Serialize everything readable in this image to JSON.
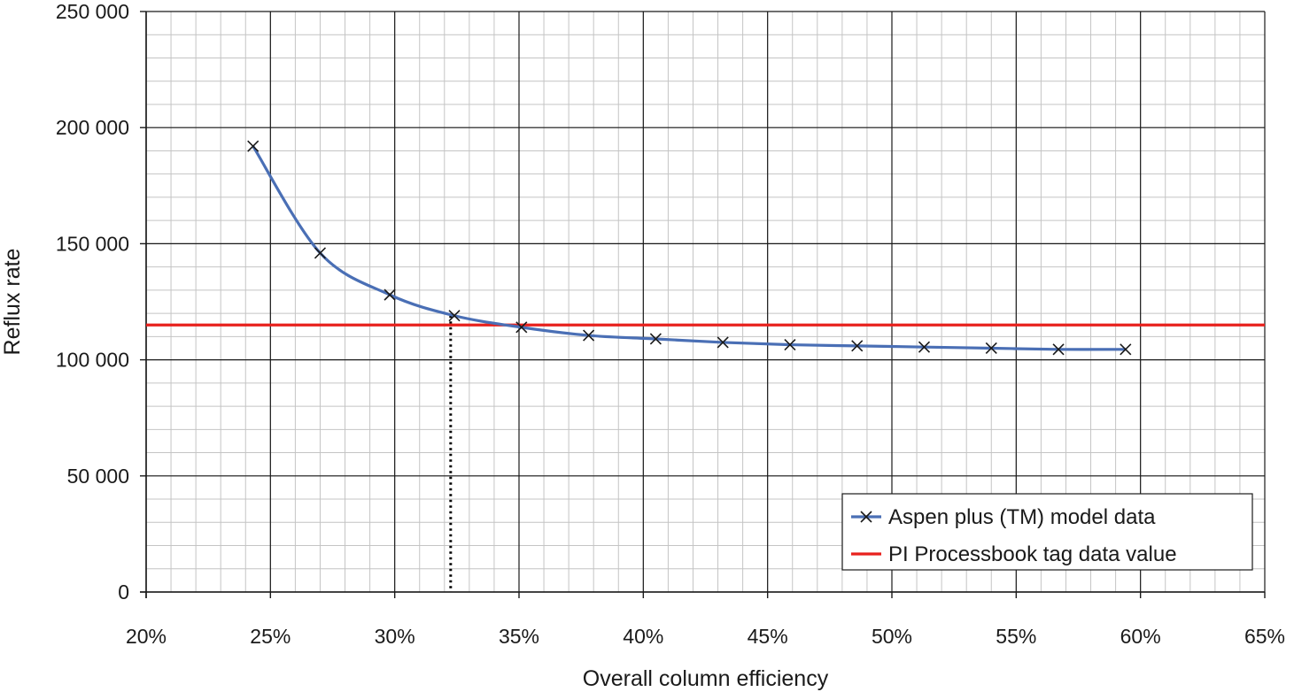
{
  "chart_data": {
    "type": "line",
    "xlabel": "Overall column efficiency",
    "ylabel": "Reflux rate",
    "xlim": [
      0.2,
      0.65
    ],
    "ylim": [
      0,
      250000
    ],
    "x_ticks": [
      "20%",
      "25%",
      "30%",
      "35%",
      "40%",
      "45%",
      "50%",
      "55%",
      "60%",
      "65%"
    ],
    "y_ticks": [
      "0",
      "50 000",
      "100 000",
      "150 000",
      "200 000",
      "250 000"
    ],
    "grid": true,
    "legend_position": "bottom-right",
    "series": [
      {
        "name": "Aspen plus (TM) model data",
        "color": "#4a6fb5",
        "marker": "x",
        "x": [
          0.243,
          0.27,
          0.298,
          0.324,
          0.351,
          0.378,
          0.405,
          0.432,
          0.459,
          0.486,
          0.513,
          0.54,
          0.567,
          0.594
        ],
        "y": [
          192000,
          146000,
          128000,
          119000,
          114000,
          110500,
          109000,
          107500,
          106500,
          106000,
          105500,
          105000,
          104500,
          104500
        ]
      },
      {
        "name": "PI Processbook tag data value",
        "color": "#e8211d",
        "y_value": 115000
      }
    ],
    "annotations": [
      {
        "type": "vertical-dotted-line",
        "x": 0.3225,
        "y_from": 0,
        "y_to": 119000
      }
    ]
  }
}
